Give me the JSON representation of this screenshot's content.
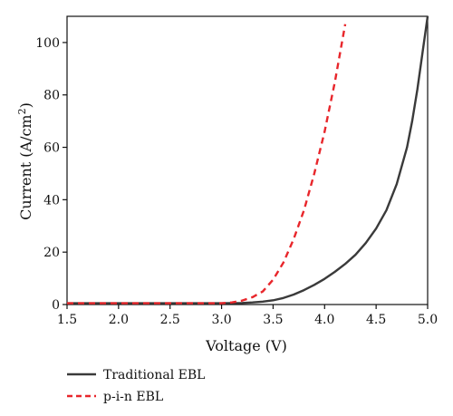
{
  "chart_data": {
    "type": "line",
    "xlabel": "Voltage (V)",
    "ylabel_main": "Current (A/cm",
    "ylabel_sup": "2",
    "ylabel_close": ")",
    "xlim": [
      1.5,
      5.0
    ],
    "ylim": [
      0,
      110
    ],
    "xticks": [
      1.5,
      2.0,
      2.5,
      3.0,
      3.5,
      4.0,
      4.5,
      5.0
    ],
    "xtick_labels": [
      "1.5",
      "2.0",
      "2.5",
      "3.0",
      "3.5",
      "4.0",
      "4.5",
      "5.0"
    ],
    "yticks": [
      0,
      20,
      40,
      60,
      80,
      100
    ],
    "ytick_labels": [
      "0",
      "20",
      "40",
      "60",
      "80",
      "100"
    ],
    "grid": false,
    "legend_position": "bottom-left, below plot",
    "series": [
      {
        "name": "Traditional EBL",
        "color": "#3a3a3a",
        "style": "solid",
        "x": [
          1.5,
          2.0,
          2.5,
          3.0,
          3.2,
          3.3,
          3.4,
          3.5,
          3.6,
          3.7,
          3.8,
          3.9,
          4.0,
          4.1,
          4.2,
          4.3,
          4.4,
          4.5,
          4.6,
          4.7,
          4.8,
          4.85,
          4.9,
          4.95,
          5.0
        ],
        "y": [
          0.5,
          0.5,
          0.5,
          0.5,
          0.6,
          0.8,
          1.1,
          1.6,
          2.5,
          3.8,
          5.5,
          7.5,
          9.8,
          12.5,
          15.5,
          19.0,
          23.5,
          29.0,
          36.0,
          46.0,
          60.0,
          70.0,
          82.0,
          96.0,
          110.0
        ]
      },
      {
        "name": "p-i-n EBL",
        "color": "#e8262b",
        "style": "dashed",
        "x": [
          1.5,
          2.0,
          2.5,
          3.0,
          3.1,
          3.2,
          3.3,
          3.4,
          3.5,
          3.6,
          3.7,
          3.8,
          3.9,
          4.0,
          4.1,
          4.2
        ],
        "y": [
          0.5,
          0.5,
          0.5,
          0.5,
          0.8,
          1.5,
          2.8,
          5.0,
          9.5,
          16.0,
          25.0,
          36.0,
          50.0,
          66.0,
          85.0,
          107.0
        ]
      }
    ]
  }
}
